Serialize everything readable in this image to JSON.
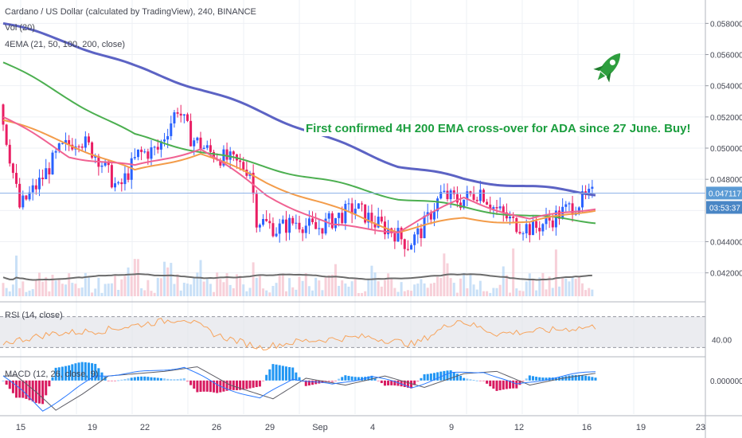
{
  "chart_data": {
    "type": "candlestick",
    "title": "Cardano / US Dollar (calculated by TradingView), 240, BINANCE",
    "indicators": [
      "Vol (20)",
      "4EMA (21, 50, 100, 200, close)"
    ],
    "annotation": "First confirmed 4H 200 EMA cross-over for ADA since 27 June. Buy!",
    "price_axis_ticks": [
      "0.058000",
      "0.056000",
      "0.054000",
      "0.052000",
      "0.050000",
      "0.048000",
      "0.044000",
      "0.042000"
    ],
    "price_ylim": [
      0.0405,
      0.0595
    ],
    "current_price": "0.047117",
    "countdown": "03:53:37",
    "x_tick_labels": [
      "15",
      "19",
      "22",
      "26",
      "29",
      "Sep",
      "4",
      "9",
      "12",
      "16",
      "19",
      "23"
    ],
    "price_anchors": [
      [
        0,
        0.0528
      ],
      [
        6,
        0.0462
      ],
      [
        12,
        0.0478
      ],
      [
        18,
        0.0498
      ],
      [
        24,
        0.0507
      ],
      [
        30,
        0.0494
      ],
      [
        36,
        0.0473
      ],
      [
        42,
        0.0496
      ],
      [
        48,
        0.0499
      ],
      [
        54,
        0.0526
      ],
      [
        58,
        0.0507
      ],
      [
        64,
        0.0497
      ],
      [
        70,
        0.0492
      ],
      [
        76,
        0.0486
      ],
      [
        78,
        0.0455
      ],
      [
        84,
        0.0448
      ],
      [
        90,
        0.0453
      ],
      [
        96,
        0.0448
      ],
      [
        102,
        0.0455
      ],
      [
        108,
        0.0462
      ],
      [
        114,
        0.0452
      ],
      [
        120,
        0.0446
      ],
      [
        124,
        0.0438
      ],
      [
        128,
        0.0447
      ],
      [
        134,
        0.047
      ],
      [
        140,
        0.0466
      ],
      [
        146,
        0.0473
      ],
      [
        150,
        0.0462
      ],
      [
        156,
        0.0452
      ],
      [
        162,
        0.0448
      ],
      [
        168,
        0.0455
      ],
      [
        174,
        0.0463
      ],
      [
        180,
        0.047
      ]
    ],
    "ema_21": [
      [
        0,
        0.052
      ],
      [
        20,
        0.0495
      ],
      [
        40,
        0.0488
      ],
      [
        60,
        0.05
      ],
      [
        80,
        0.047
      ],
      [
        100,
        0.045
      ],
      [
        120,
        0.0447
      ],
      [
        140,
        0.0468
      ],
      [
        160,
        0.0454
      ],
      [
        180,
        0.0462
      ]
    ],
    "ema_50": [
      [
        0,
        0.0518
      ],
      [
        20,
        0.0503
      ],
      [
        40,
        0.0485
      ],
      [
        60,
        0.0497
      ],
      [
        80,
        0.0478
      ],
      [
        100,
        0.0462
      ],
      [
        120,
        0.0447
      ],
      [
        140,
        0.0455
      ],
      [
        160,
        0.0452
      ],
      [
        180,
        0.0461
      ]
    ],
    "ema_100": [
      [
        0,
        0.0555
      ],
      [
        20,
        0.0532
      ],
      [
        40,
        0.0508
      ],
      [
        60,
        0.0498
      ],
      [
        80,
        0.0488
      ],
      [
        100,
        0.0478
      ],
      [
        120,
        0.0468
      ],
      [
        140,
        0.0462
      ],
      [
        160,
        0.0456
      ],
      [
        180,
        0.0453
      ]
    ],
    "ema_200": [
      [
        0,
        0.058
      ],
      [
        20,
        0.0568
      ],
      [
        40,
        0.0552
      ],
      [
        60,
        0.0538
      ],
      [
        80,
        0.0522
      ],
      [
        100,
        0.0505
      ],
      [
        120,
        0.0489
      ],
      [
        140,
        0.048
      ],
      [
        160,
        0.0475
      ],
      [
        180,
        0.0471
      ]
    ],
    "rsi": {
      "label": "RSI (14, close)",
      "axis_tick": "40.00",
      "ylim": [
        20,
        80
      ],
      "upper_band": 70,
      "lower_band": 30,
      "anchors": [
        [
          0,
          36
        ],
        [
          15,
          48
        ],
        [
          30,
          52
        ],
        [
          45,
          62
        ],
        [
          55,
          68
        ],
        [
          65,
          46
        ],
        [
          78,
          30
        ],
        [
          90,
          38
        ],
        [
          110,
          44
        ],
        [
          125,
          34
        ],
        [
          138,
          66
        ],
        [
          150,
          48
        ],
        [
          165,
          52
        ],
        [
          180,
          57
        ]
      ]
    },
    "macd": {
      "label": "MACD (12, 26, close, 9)",
      "axis_tick": "0.000000",
      "ylim": [
        -0.0014,
        0.0009
      ],
      "anchors": [
        [
          0,
          0.0002
        ],
        [
          6,
          -0.0005
        ],
        [
          12,
          -0.0013
        ],
        [
          20,
          -0.0006
        ],
        [
          28,
          0.0002
        ],
        [
          45,
          0.0004
        ],
        [
          55,
          0.0006
        ],
        [
          65,
          -0.0002
        ],
        [
          78,
          -0.0008
        ],
        [
          88,
          0.0001
        ],
        [
          100,
          -0.0002
        ],
        [
          112,
          0.0002
        ],
        [
          124,
          -0.0003
        ],
        [
          136,
          0.0003
        ],
        [
          146,
          0.0004
        ],
        [
          156,
          -0.0002
        ],
        [
          166,
          0.0001
        ],
        [
          180,
          0.0004
        ]
      ]
    },
    "volume": {
      "label": "Vol (20)",
      "ylim": [
        0,
        10
      ]
    }
  },
  "colors": {
    "up": "#26a69a",
    "down": "#ef5350",
    "up_candle": "#2962ff",
    "down_candle": "#e91e63",
    "ema_21": "#f06292",
    "ema_50": "#f39c4a",
    "ema_100": "#4caf50",
    "ema_200": "#5c63c4",
    "rsi": "#f7a45c",
    "annotation": "#1b9e3e"
  }
}
